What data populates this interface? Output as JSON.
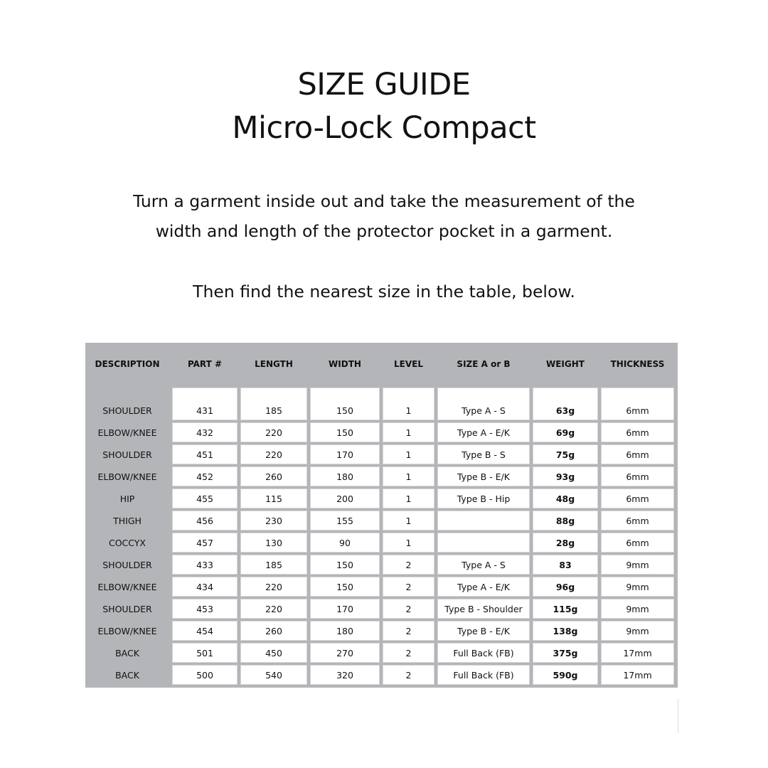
{
  "heading": {
    "line1": "SIZE GUIDE",
    "line2": "Micro-Lock Compact"
  },
  "instructions": {
    "line1": "Turn a garment inside out and take the measurement of the",
    "line2": "width and length of the protector pocket in a garment.",
    "line3": "Then find the nearest size in the table, below."
  },
  "table": {
    "columns": [
      "DESCRIPTION",
      "PART #",
      "LENGTH",
      "WIDTH",
      "LEVEL",
      "SIZE A or B",
      "WEIGHT",
      "THICKNESS"
    ],
    "rows": [
      [
        "SHOULDER",
        "431",
        "185",
        "150",
        "1",
        "Type A - S",
        "63g",
        "6mm"
      ],
      [
        "ELBOW/KNEE",
        "432",
        "220",
        "150",
        "1",
        "Type A - E/K",
        "69g",
        "6mm"
      ],
      [
        "SHOULDER",
        "451",
        "220",
        "170",
        "1",
        "Type B - S",
        "75g",
        "6mm"
      ],
      [
        "ELBOW/KNEE",
        "452",
        "260",
        "180",
        "1",
        "Type B - E/K",
        "93g",
        "6mm"
      ],
      [
        "HIP",
        "455",
        "115",
        "200",
        "1",
        "Type B - Hip",
        "48g",
        "6mm"
      ],
      [
        "THIGH",
        "456",
        "230",
        "155",
        "1",
        "",
        "88g",
        "6mm"
      ],
      [
        "COCCYX",
        "457",
        "130",
        "90",
        "1",
        "",
        "28g",
        "6mm"
      ],
      [
        "SHOULDER",
        "433",
        "185",
        "150",
        "2",
        "Type A - S",
        "83",
        "9mm"
      ],
      [
        "ELBOW/KNEE",
        "434",
        "220",
        "150",
        "2",
        "Type A - E/K",
        "96g",
        "9mm"
      ],
      [
        "SHOULDER",
        "453",
        "220",
        "170",
        "2",
        "Type B - Shoulder",
        "115g",
        "9mm"
      ],
      [
        "ELBOW/KNEE",
        "454",
        "260",
        "180",
        "2",
        "Type B - E/K",
        "138g",
        "9mm"
      ],
      [
        "BACK",
        "501",
        "450",
        "270",
        "2",
        "Full Back (FB)",
        "375g",
        "17mm"
      ],
      [
        "BACK",
        "500",
        "540",
        "320",
        "2",
        "Full Back (FB)",
        "590g",
        "17mm"
      ]
    ]
  },
  "colors": {
    "table_background": "#b4b5b9",
    "cell_background": "#ffffff",
    "text": "#111111"
  }
}
